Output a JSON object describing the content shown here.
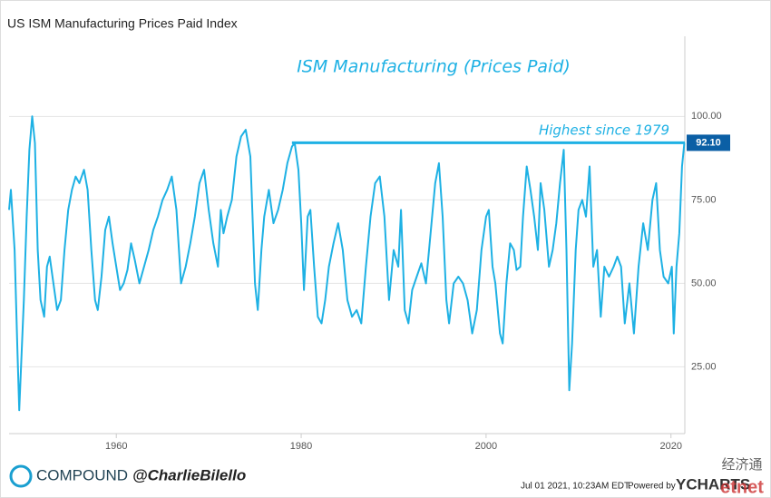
{
  "chart_data": {
    "type": "line",
    "title": "US ISM Manufacturing Prices Paid Index",
    "annotation": "ISM Manufacturing (Prices Paid)",
    "highlight": {
      "text": "Highest since 1979",
      "from": 1979,
      "value": 92.1,
      "label": "92.10"
    },
    "footer": {
      "brand": "COMPOUND",
      "handle": "@CharlieBilello",
      "timestamp": "Jul 01 2021, 10:23AM EDT.",
      "powered": "Powered by",
      "source": "YCHARTS",
      "watermark": "经济通",
      "watermark2": "etnet"
    },
    "xlim": [
      1948.4,
      2021.5
    ],
    "ylim": [
      5,
      124
    ],
    "xticks": [
      1960,
      1980,
      2000,
      2020
    ],
    "yticks": [
      {
        "value": 25,
        "label": "25.00"
      },
      {
        "value": 50,
        "label": "50.00"
      },
      {
        "value": 75,
        "label": "75.00"
      },
      {
        "value": 100,
        "label": "100.00"
      }
    ],
    "grid": true,
    "series": [
      {
        "name": "US ISM Manufacturing Prices Paid Index",
        "color": "#1eb1e4",
        "x": [
          1948.4,
          1948.6,
          1949,
          1949.3,
          1949.5,
          1949.7,
          1950,
          1950.3,
          1950.6,
          1950.9,
          1951.2,
          1951.5,
          1951.8,
          1952.2,
          1952.5,
          1952.8,
          1953.2,
          1953.6,
          1954,
          1954.4,
          1954.8,
          1955.2,
          1955.6,
          1956,
          1956.5,
          1956.9,
          1957.3,
          1957.7,
          1958,
          1958.4,
          1958.8,
          1959.2,
          1959.6,
          1960,
          1960.4,
          1960.8,
          1961.2,
          1961.6,
          1962,
          1962.5,
          1963,
          1963.5,
          1964,
          1964.5,
          1965,
          1965.5,
          1966,
          1966.5,
          1967,
          1967.5,
          1968,
          1968.5,
          1969,
          1969.5,
          1970,
          1970.5,
          1971,
          1971.3,
          1971.6,
          1972,
          1972.5,
          1973,
          1973.5,
          1974,
          1974.5,
          1975,
          1975.3,
          1975.7,
          1976,
          1976.5,
          1977,
          1977.5,
          1978,
          1978.5,
          1979,
          1979.3,
          1979.7,
          1980,
          1980.3,
          1980.7,
          1981,
          1981.4,
          1981.8,
          1982.2,
          1982.6,
          1983,
          1983.5,
          1984,
          1984.5,
          1985,
          1985.5,
          1986,
          1986.5,
          1987,
          1987.5,
          1988,
          1988.5,
          1989,
          1989.5,
          1990,
          1990.5,
          1990.8,
          1991.2,
          1991.6,
          1992,
          1992.5,
          1993,
          1993.5,
          1994,
          1994.5,
          1994.9,
          1995.3,
          1995.7,
          1996,
          1996.5,
          1997,
          1997.5,
          1998,
          1998.5,
          1999,
          1999.5,
          2000,
          2000.3,
          2000.7,
          2001,
          2001.5,
          2001.8,
          2002.2,
          2002.6,
          2003,
          2003.3,
          2003.7,
          2004,
          2004.4,
          2004.8,
          2005.2,
          2005.6,
          2005.9,
          2006.3,
          2006.8,
          2007.2,
          2007.6,
          2008,
          2008.4,
          2008.7,
          2009,
          2009.3,
          2009.7,
          2010,
          2010.4,
          2010.8,
          2011.2,
          2011.6,
          2012,
          2012.4,
          2012.8,
          2013.3,
          2013.8,
          2014.2,
          2014.6,
          2015,
          2015.5,
          2016,
          2016.5,
          2017,
          2017.5,
          2018,
          2018.4,
          2018.8,
          2019.2,
          2019.7,
          2020.1,
          2020.3,
          2020.6,
          2020.9,
          2021.2,
          2021.45
        ],
        "values": [
          72,
          78,
          60,
          30,
          12,
          25,
          45,
          70,
          90,
          100,
          92,
          60,
          45,
          40,
          55,
          58,
          50,
          42,
          45,
          60,
          72,
          78,
          82,
          80,
          84,
          78,
          60,
          45,
          42,
          52,
          66,
          70,
          62,
          55,
          48,
          50,
          54,
          62,
          57,
          50,
          55,
          60,
          66,
          70,
          75,
          78,
          82,
          72,
          50,
          55,
          62,
          70,
          80,
          84,
          72,
          62,
          55,
          72,
          65,
          70,
          75,
          88,
          94,
          96,
          88,
          50,
          42,
          60,
          70,
          78,
          68,
          72,
          78,
          86,
          91,
          92,
          84,
          68,
          48,
          70,
          72,
          55,
          40,
          38,
          45,
          55,
          62,
          68,
          60,
          45,
          40,
          42,
          38,
          55,
          70,
          80,
          82,
          70,
          45,
          60,
          55,
          72,
          42,
          38,
          48,
          52,
          56,
          50,
          65,
          80,
          86,
          70,
          45,
          38,
          50,
          52,
          50,
          45,
          35,
          42,
          60,
          70,
          72,
          55,
          50,
          35,
          32,
          50,
          62,
          60,
          54,
          55,
          70,
          85,
          78,
          70,
          60,
          80,
          72,
          55,
          60,
          68,
          80,
          90,
          60,
          18,
          32,
          60,
          72,
          75,
          70,
          85,
          55,
          60,
          40,
          55,
          52,
          55,
          58,
          55,
          38,
          50,
          35,
          55,
          68,
          60,
          75,
          80,
          60,
          52,
          50,
          55,
          35,
          55,
          65,
          85,
          92.1
        ]
      }
    ]
  }
}
